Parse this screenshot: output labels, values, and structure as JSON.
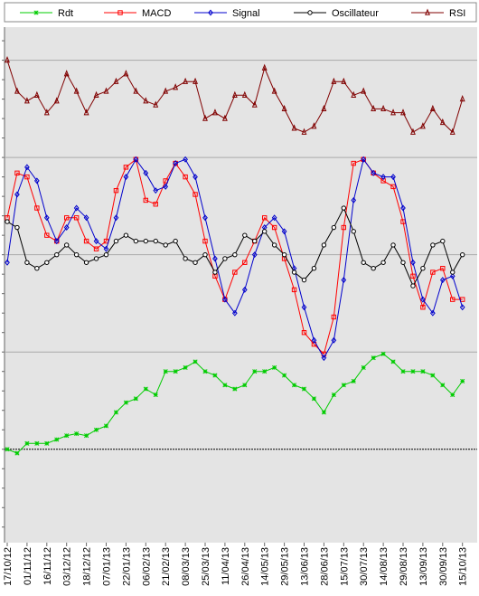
{
  "chart_data": {
    "type": "line",
    "categories": [
      "17/10/12",
      null,
      "01/11/12",
      null,
      "16/11/12",
      null,
      "03/12/12",
      null,
      "18/12/12",
      null,
      "07/01/13",
      null,
      "22/01/13",
      null,
      "06/02/13",
      null,
      "21/02/13",
      null,
      "08/03/13",
      null,
      "25/03/13",
      null,
      "11/04/13",
      null,
      "26/04/13",
      null,
      "14/05/13",
      null,
      "29/05/13",
      null,
      "13/06/13",
      null,
      "28/06/13",
      null,
      "15/07/13",
      null,
      "30/07/13",
      null,
      "14/08/13",
      null,
      "29/08/13",
      null,
      "13/09/13",
      null,
      "30/09/13",
      null,
      "15/10/13"
    ],
    "series": [
      {
        "name": "Rdt",
        "color": "#00cc00",
        "marker": "star",
        "values": [
          0.0,
          -0.2,
          0.3,
          0.3,
          0.3,
          0.5,
          0.7,
          0.8,
          0.7,
          1.0,
          1.2,
          1.9,
          2.4,
          2.6,
          3.1,
          2.8,
          4.0,
          4.0,
          4.2,
          4.5,
          4.0,
          3.8,
          3.3,
          3.1,
          3.3,
          4.0,
          4.0,
          4.2,
          3.8,
          3.3,
          3.1,
          2.6,
          1.9,
          2.8,
          3.3,
          3.5,
          4.2,
          4.7,
          4.9,
          4.5,
          4.0,
          4.0,
          4.0,
          3.8,
          3.3,
          2.8,
          3.5
        ]
      },
      {
        "name": "MACD",
        "color": "#ff0000",
        "marker": "square",
        "values": [
          11.9,
          14.2,
          14.0,
          12.4,
          11.0,
          10.7,
          11.9,
          11.9,
          10.7,
          10.3,
          10.7,
          13.3,
          14.5,
          14.9,
          12.8,
          12.6,
          13.8,
          14.7,
          14.0,
          13.1,
          10.7,
          8.9,
          7.7,
          9.1,
          9.6,
          10.7,
          11.9,
          11.4,
          9.8,
          8.2,
          6.0,
          5.4,
          4.9,
          6.8,
          11.4,
          14.7,
          14.9,
          14.2,
          13.8,
          13.5,
          11.7,
          8.9,
          7.3,
          9.1,
          9.3,
          7.7,
          7.7
        ]
      },
      {
        "name": "Signal",
        "color": "#0000cc",
        "marker": "diamond",
        "values": [
          9.6,
          13.1,
          14.5,
          13.8,
          11.9,
          10.7,
          11.4,
          12.4,
          11.9,
          10.7,
          10.3,
          11.9,
          14.0,
          14.9,
          14.2,
          13.3,
          13.5,
          14.7,
          14.9,
          14.0,
          11.9,
          9.8,
          7.7,
          7.0,
          8.2,
          10.0,
          11.4,
          11.9,
          11.2,
          9.3,
          7.3,
          5.6,
          4.7,
          5.6,
          8.7,
          12.8,
          14.9,
          14.2,
          14.0,
          14.0,
          12.4,
          9.6,
          7.7,
          7.0,
          8.7,
          8.9,
          7.3
        ]
      },
      {
        "name": "Oscillateur",
        "color": "#000000",
        "marker": "circle",
        "values": [
          11.7,
          11.4,
          9.6,
          9.3,
          9.6,
          10.0,
          10.5,
          10.0,
          9.6,
          9.8,
          10.0,
          10.7,
          11.0,
          10.7,
          10.7,
          10.7,
          10.5,
          10.7,
          9.8,
          9.6,
          10.0,
          9.1,
          9.8,
          10.0,
          11.0,
          10.7,
          11.2,
          10.5,
          10.0,
          9.1,
          8.7,
          9.3,
          10.5,
          11.4,
          12.4,
          11.2,
          9.6,
          9.3,
          9.6,
          10.5,
          9.6,
          8.4,
          9.3,
          10.5,
          10.7,
          9.1,
          10.0
        ]
      },
      {
        "name": "RSI",
        "color": "#800000",
        "marker": "triangle",
        "values": [
          20.0,
          18.4,
          17.9,
          18.2,
          17.3,
          17.9,
          19.3,
          18.4,
          17.3,
          18.2,
          18.4,
          18.9,
          19.3,
          18.4,
          17.9,
          17.7,
          18.4,
          18.6,
          18.9,
          18.9,
          17.0,
          17.3,
          17.0,
          18.2,
          18.2,
          17.7,
          19.6,
          18.4,
          17.5,
          16.5,
          16.3,
          16.6,
          17.5,
          18.9,
          18.9,
          18.2,
          18.4,
          17.5,
          17.5,
          17.3,
          17.3,
          16.3,
          16.6,
          17.5,
          16.8,
          16.3,
          18.0
        ]
      }
    ],
    "ylim": [
      -4.8,
      21.7
    ],
    "yticks": [
      -4,
      -3,
      -2,
      -1,
      0,
      1,
      2,
      3,
      4,
      5,
      6,
      7,
      8,
      9,
      10,
      11,
      12,
      13,
      14,
      15,
      16,
      17,
      18,
      19,
      20,
      21
    ],
    "ygrid": [
      0,
      5,
      10,
      15,
      20
    ],
    "legend": "top"
  }
}
